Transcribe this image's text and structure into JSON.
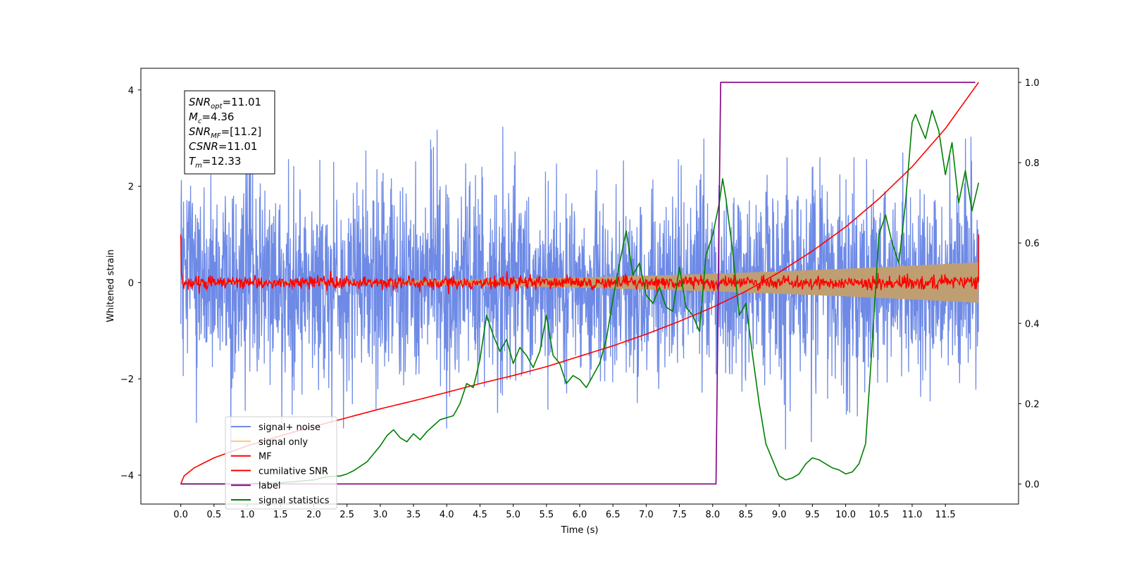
{
  "chart_data": {
    "type": "line",
    "title": "",
    "xlabel": "Time (s)",
    "ylabel": "Whitened strain",
    "xlim": [
      -0.6,
      12.6
    ],
    "ylim": [
      -4.6,
      4.45
    ],
    "y2lim": [
      -0.05,
      1.035
    ],
    "x_ticks": [
      0.0,
      0.5,
      1.0,
      1.5,
      2.0,
      2.5,
      3.0,
      3.5,
      4.0,
      4.5,
      5.0,
      5.5,
      6.0,
      6.5,
      7.0,
      7.5,
      8.0,
      8.5,
      9.0,
      9.5,
      10.0,
      10.5,
      11.0,
      11.5
    ],
    "x_tick_labels": [
      "0.0",
      "0.5",
      "1.0",
      "1.5",
      "2.0",
      "2.5",
      "3.0",
      "3.5",
      "4.0",
      "4.5",
      "5.0",
      "5.5",
      "6.0",
      "6.5",
      "7.0",
      "7.5",
      "8.0",
      "8.5",
      "9.0",
      "9.5",
      "10.0",
      "10.5",
      "11.0",
      "11.5"
    ],
    "y_ticks": [
      -4,
      -2,
      0,
      2,
      4
    ],
    "y_tick_labels": [
      "−4",
      "−2",
      "0",
      "2",
      "4"
    ],
    "y2_ticks": [
      0.0,
      0.2,
      0.4,
      0.6,
      0.8,
      1.0
    ],
    "y2_tick_labels": [
      "0.0",
      "0.2",
      "0.4",
      "0.6",
      "0.8",
      "1.0"
    ],
    "grid": false,
    "legend_position": "lower-left",
    "annotation": [
      {
        "sym": "SNR",
        "sub": "opt",
        "value": "=11.01"
      },
      {
        "sym": "M",
        "sub": "c",
        "value": "=4.36"
      },
      {
        "sym": "SNR",
        "sub": "MF",
        "value": "=[11.2]"
      },
      {
        "sym": "CSNR",
        "sub": "",
        "value": "=11.01"
      },
      {
        "sym": "T",
        "sub": "m",
        "value": "=12.33"
      }
    ],
    "series": [
      {
        "name": "signal+ noise",
        "color": "#6e8ae6",
        "axis": "left",
        "style": "noise",
        "x_range": [
          0.0,
          12.0
        ],
        "sigma": 1.0,
        "peak_range": [
          -4.2,
          4.05
        ]
      },
      {
        "name": "signal only",
        "color": "#ffc77a",
        "axis": "left",
        "style": "chirp",
        "x_range": [
          0.0,
          12.0
        ],
        "amplitude_start": 0.02,
        "amplitude_end": 0.42,
        "fill_color": "#bf9f72"
      },
      {
        "name": "MF",
        "color": "#ff0000",
        "axis": "left",
        "style": "mf",
        "x_range": [
          0.0,
          12.0
        ],
        "start_value": 1.0,
        "end_value": 1.0,
        "noise_sigma": 0.07
      },
      {
        "name": "cumilative SNR",
        "color": "#ff0000",
        "axis": "right",
        "x": [
          0.0,
          0.05,
          0.2,
          0.5,
          1.0,
          1.5,
          2.0,
          2.5,
          3.0,
          3.5,
          4.0,
          4.5,
          5.0,
          5.5,
          6.0,
          6.5,
          7.0,
          7.5,
          8.0,
          8.5,
          9.0,
          9.5,
          10.0,
          10.5,
          11.0,
          11.5,
          12.0
        ],
        "y": [
          0.0,
          0.02,
          0.04,
          0.065,
          0.095,
          0.12,
          0.143,
          0.165,
          0.187,
          0.207,
          0.228,
          0.25,
          0.27,
          0.292,
          0.318,
          0.344,
          0.373,
          0.405,
          0.44,
          0.48,
          0.527,
          0.58,
          0.64,
          0.71,
          0.79,
          0.885,
          1.0
        ]
      },
      {
        "name": "label",
        "color": "#800080",
        "axis": "right",
        "x": [
          0.0,
          8.05,
          8.12,
          11.95
        ],
        "y": [
          0.0,
          0.0,
          1.0,
          1.0
        ]
      },
      {
        "name": "signal statistics",
        "color": "#008000",
        "axis": "right",
        "x": [
          0.0,
          1.0,
          1.5,
          2.0,
          2.2,
          2.4,
          2.5,
          2.6,
          2.8,
          3.0,
          3.1,
          3.2,
          3.3,
          3.4,
          3.5,
          3.6,
          3.7,
          3.8,
          3.9,
          4.0,
          4.1,
          4.2,
          4.3,
          4.4,
          4.5,
          4.6,
          4.7,
          4.8,
          4.9,
          5.0,
          5.1,
          5.2,
          5.3,
          5.4,
          5.5,
          5.6,
          5.7,
          5.8,
          5.9,
          6.0,
          6.1,
          6.2,
          6.3,
          6.4,
          6.5,
          6.6,
          6.7,
          6.8,
          6.9,
          7.0,
          7.1,
          7.2,
          7.3,
          7.4,
          7.5,
          7.6,
          7.7,
          7.8,
          7.9,
          8.0,
          8.1,
          8.15,
          8.2,
          8.3,
          8.4,
          8.5,
          8.6,
          8.7,
          8.8,
          8.9,
          9.0,
          9.1,
          9.2,
          9.3,
          9.4,
          9.5,
          9.6,
          9.7,
          9.8,
          9.9,
          10.0,
          10.1,
          10.2,
          10.3,
          10.4,
          10.5,
          10.6,
          10.7,
          10.8,
          10.9,
          11.0,
          11.05,
          11.1,
          11.2,
          11.3,
          11.4,
          11.5,
          11.6,
          11.7,
          11.8,
          11.9,
          12.0
        ],
        "y": [
          0.0,
          0.0,
          0.003,
          0.01,
          0.018,
          0.02,
          0.025,
          0.033,
          0.055,
          0.095,
          0.12,
          0.135,
          0.115,
          0.105,
          0.125,
          0.11,
          0.13,
          0.145,
          0.16,
          0.165,
          0.17,
          0.2,
          0.25,
          0.24,
          0.31,
          0.42,
          0.37,
          0.33,
          0.36,
          0.3,
          0.34,
          0.32,
          0.29,
          0.33,
          0.42,
          0.32,
          0.3,
          0.25,
          0.27,
          0.26,
          0.24,
          0.27,
          0.3,
          0.36,
          0.46,
          0.55,
          0.63,
          0.52,
          0.55,
          0.47,
          0.45,
          0.49,
          0.44,
          0.43,
          0.54,
          0.44,
          0.42,
          0.38,
          0.57,
          0.62,
          0.7,
          0.76,
          0.71,
          0.58,
          0.42,
          0.45,
          0.32,
          0.2,
          0.1,
          0.06,
          0.02,
          0.01,
          0.015,
          0.025,
          0.05,
          0.065,
          0.06,
          0.05,
          0.04,
          0.035,
          0.025,
          0.03,
          0.05,
          0.1,
          0.35,
          0.62,
          0.67,
          0.6,
          0.55,
          0.7,
          0.9,
          0.92,
          0.9,
          0.86,
          0.93,
          0.88,
          0.77,
          0.85,
          0.7,
          0.78,
          0.68,
          0.75
        ]
      }
    ]
  }
}
